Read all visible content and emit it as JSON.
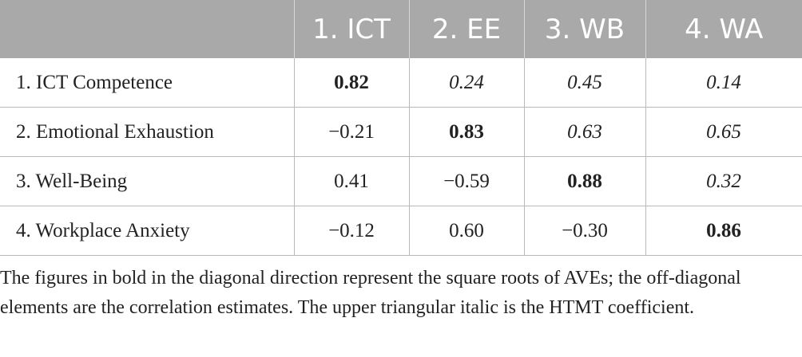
{
  "table": {
    "headers": [
      "",
      "1. ICT",
      "2. EE",
      "3. WB",
      "4. WA"
    ],
    "rows": [
      {
        "label": "1. ICT Competence",
        "cells": [
          "0.82",
          "0.24",
          "0.45",
          "0.14"
        ]
      },
      {
        "label": "2. Emotional Exhaustion",
        "cells": [
          "−0.21",
          "0.83",
          "0.63",
          "0.65"
        ]
      },
      {
        "label": "3. Well-Being",
        "cells": [
          "0.41",
          "−0.59",
          "0.88",
          "0.32"
        ]
      },
      {
        "label": "4. Workplace Anxiety",
        "cells": [
          "−0.12",
          "0.60",
          "−0.30",
          "0.86"
        ]
      }
    ]
  },
  "footnote": "The figures in bold in the diagonal direction represent the square roots of AVEs; the off-diagonal elements are the correlation estimates. The upper triangular italic is the HTMT coefficient.",
  "colors": {
    "header_bg": "#a9a9a9",
    "header_text": "#ffffff",
    "grid": "#b9b9b9"
  }
}
